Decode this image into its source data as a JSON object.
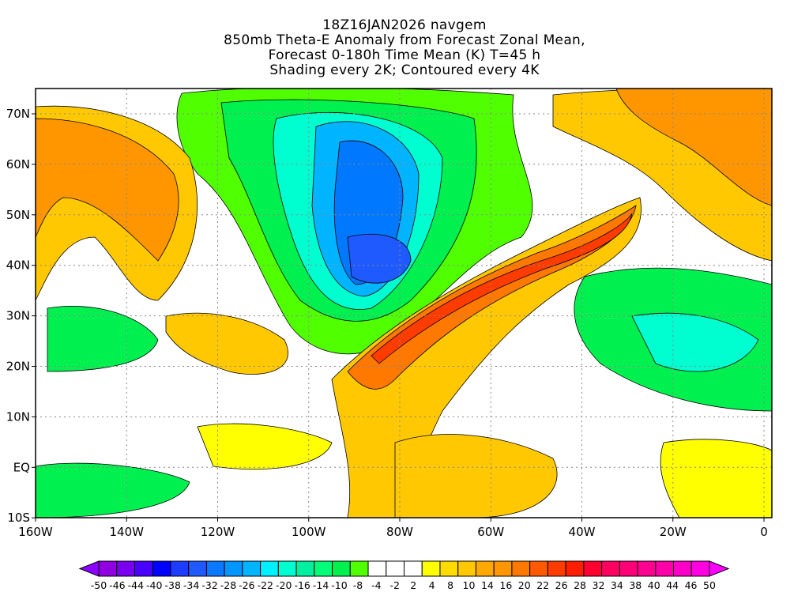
{
  "title": {
    "line1": "18Z16JAN2026 navgem",
    "line2": "850mb Theta-E Anomaly from Forecast Zonal Mean,",
    "line3": "Forecast 0-180h Time Mean (K) T=45 h",
    "line4": "Shading every 2K; Contoured every 4K"
  },
  "map": {
    "lat_labels": [
      "70N",
      "60N",
      "50N",
      "40N",
      "30N",
      "20N",
      "10N",
      "EQ",
      "10S"
    ],
    "lon_labels": [
      "160W",
      "140W",
      "120W",
      "100W",
      "80W",
      "60W",
      "40W",
      "20W",
      "0"
    ]
  },
  "colorbar": {
    "labels": [
      "-50",
      "-46",
      "-44",
      "-40",
      "-38",
      "-34",
      "-32",
      "-28",
      "-26",
      "-22",
      "-20",
      "-16",
      "-14",
      "-10",
      "-8",
      "-4",
      "-2",
      "2",
      "4",
      "8",
      "10",
      "14",
      "16",
      "20",
      "22",
      "26",
      "28",
      "32",
      "34",
      "38",
      "40",
      "44",
      "46",
      "50"
    ],
    "colors": [
      "#9000e0",
      "#7a00f0",
      "#4a00ff",
      "#0000ff",
      "#1e3cff",
      "#1e5aff",
      "#0a78ff",
      "#0096ff",
      "#00b4ff",
      "#00f0ff",
      "#00ffd0",
      "#00f0a0",
      "#00ff78",
      "#00f050",
      "#50ff00",
      "#ffffff",
      "#ffffff",
      "#ffffff",
      "#ffff00",
      "#ffdc00",
      "#ffc800",
      "#ffa800",
      "#ff9600",
      "#ff7800",
      "#ff5a00",
      "#ff3c00",
      "#ff1e00",
      "#ff0030",
      "#ff0060",
      "#ff0078",
      "#ff0090",
      "#ff00a8",
      "#ff00c8",
      "#ff00e0"
    ],
    "low_arrow_color": "#8c00ff",
    "high_arrow_color": "#ff00ff"
  }
}
